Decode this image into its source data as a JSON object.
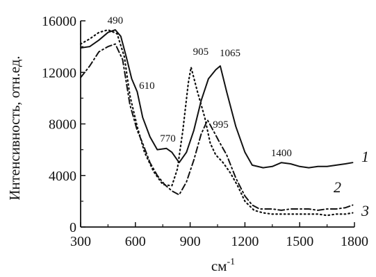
{
  "chart_data": {
    "type": "line",
    "xlabel": "см",
    "xlabel_superscript": "-1",
    "ylabel": "Интенсивность, отн.ед.",
    "xlim": [
      300,
      1800
    ],
    "ylim": [
      0,
      16000
    ],
    "x_ticks": [
      300,
      600,
      900,
      1200,
      1500,
      1800
    ],
    "y_ticks": [
      0,
      4000,
      8000,
      12000,
      16000
    ],
    "grid": false,
    "series": [
      {
        "name": "1",
        "style": "solid",
        "points": [
          [
            300,
            13900
          ],
          [
            350,
            14000
          ],
          [
            400,
            14500
          ],
          [
            450,
            15100
          ],
          [
            490,
            15300
          ],
          [
            520,
            14800
          ],
          [
            550,
            13200
          ],
          [
            580,
            11500
          ],
          [
            610,
            10500
          ],
          [
            640,
            8500
          ],
          [
            680,
            7000
          ],
          [
            720,
            6000
          ],
          [
            770,
            6100
          ],
          [
            800,
            5800
          ],
          [
            840,
            5000
          ],
          [
            880,
            5800
          ],
          [
            920,
            7500
          ],
          [
            960,
            9800
          ],
          [
            1000,
            11500
          ],
          [
            1040,
            12200
          ],
          [
            1065,
            12500
          ],
          [
            1100,
            10500
          ],
          [
            1150,
            7800
          ],
          [
            1200,
            5800
          ],
          [
            1240,
            4800
          ],
          [
            1300,
            4600
          ],
          [
            1350,
            4700
          ],
          [
            1400,
            5000
          ],
          [
            1450,
            4900
          ],
          [
            1500,
            4700
          ],
          [
            1550,
            4600
          ],
          [
            1600,
            4700
          ],
          [
            1650,
            4700
          ],
          [
            1700,
            4800
          ],
          [
            1750,
            4900
          ],
          [
            1790,
            5000
          ]
        ]
      },
      {
        "name": "2",
        "style": "dotted",
        "points": [
          [
            300,
            14200
          ],
          [
            350,
            14600
          ],
          [
            400,
            15100
          ],
          [
            450,
            15300
          ],
          [
            500,
            15000
          ],
          [
            540,
            13200
          ],
          [
            570,
            10200
          ],
          [
            610,
            7800
          ],
          [
            650,
            5800
          ],
          [
            700,
            4300
          ],
          [
            750,
            3300
          ],
          [
            800,
            3200
          ],
          [
            830,
            4500
          ],
          [
            860,
            7500
          ],
          [
            890,
            11200
          ],
          [
            905,
            12400
          ],
          [
            940,
            10500
          ],
          [
            980,
            8500
          ],
          [
            1010,
            6500
          ],
          [
            1040,
            5600
          ],
          [
            1080,
            5000
          ],
          [
            1120,
            4200
          ],
          [
            1160,
            3200
          ],
          [
            1200,
            2000
          ],
          [
            1250,
            1300
          ],
          [
            1300,
            1100
          ],
          [
            1350,
            1000
          ],
          [
            1400,
            1000
          ],
          [
            1450,
            1000
          ],
          [
            1500,
            1000
          ],
          [
            1550,
            1000
          ],
          [
            1600,
            1000
          ],
          [
            1650,
            900
          ],
          [
            1700,
            1000
          ],
          [
            1750,
            1000
          ],
          [
            1790,
            1100
          ]
        ]
      },
      {
        "name": "3",
        "style": "dash-dot",
        "points": [
          [
            300,
            11600
          ],
          [
            350,
            12500
          ],
          [
            400,
            13600
          ],
          [
            450,
            14000
          ],
          [
            490,
            14200
          ],
          [
            530,
            13000
          ],
          [
            570,
            9500
          ],
          [
            610,
            7500
          ],
          [
            640,
            6500
          ],
          [
            680,
            5000
          ],
          [
            720,
            4000
          ],
          [
            760,
            3300
          ],
          [
            800,
            2800
          ],
          [
            840,
            2500
          ],
          [
            880,
            3500
          ],
          [
            920,
            5200
          ],
          [
            960,
            7200
          ],
          [
            995,
            8300
          ],
          [
            1030,
            7400
          ],
          [
            1060,
            6600
          ],
          [
            1100,
            5600
          ],
          [
            1150,
            3800
          ],
          [
            1200,
            2400
          ],
          [
            1240,
            1700
          ],
          [
            1280,
            1400
          ],
          [
            1350,
            1400
          ],
          [
            1400,
            1300
          ],
          [
            1450,
            1400
          ],
          [
            1500,
            1400
          ],
          [
            1550,
            1400
          ],
          [
            1600,
            1300
          ],
          [
            1650,
            1400
          ],
          [
            1700,
            1400
          ],
          [
            1750,
            1500
          ],
          [
            1790,
            1700
          ]
        ]
      }
    ],
    "annotations": [
      {
        "text": "490",
        "x": 490,
        "y": 15300
      },
      {
        "text": "610",
        "x": 610,
        "y": 10500
      },
      {
        "text": "770",
        "x": 770,
        "y": 6100
      },
      {
        "text": "905",
        "x": 905,
        "y": 12400
      },
      {
        "text": "1065",
        "x": 1065,
        "y": 12500
      },
      {
        "text": "995",
        "x": 995,
        "y": 8300
      },
      {
        "text": "1400",
        "x": 1400,
        "y": 5000
      }
    ]
  }
}
